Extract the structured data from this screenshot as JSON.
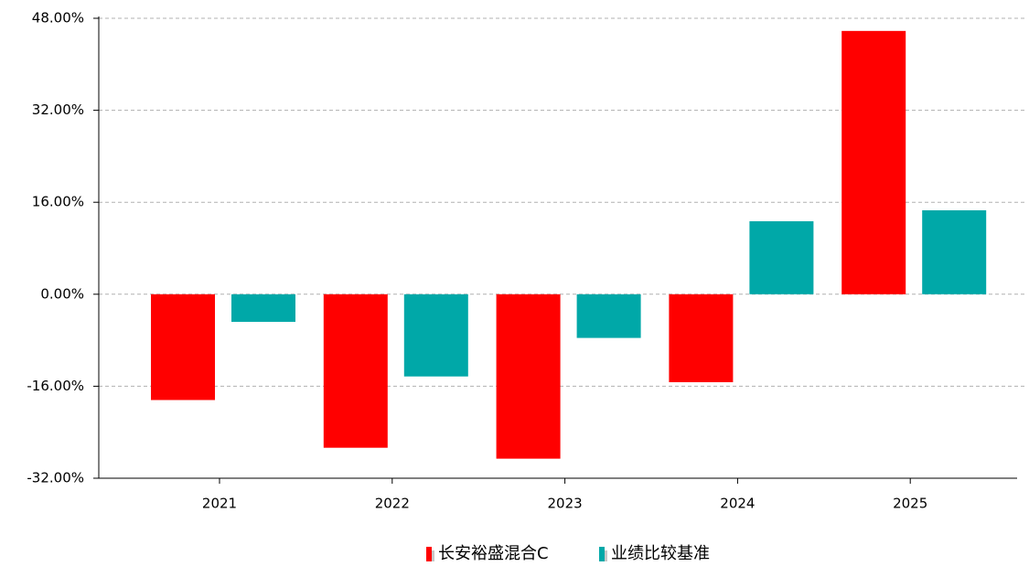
{
  "chart_data": {
    "type": "bar",
    "categories": [
      "2021",
      "2022",
      "2023",
      "2024",
      "2025"
    ],
    "series": [
      {
        "name": "长安裕盛混合C",
        "color": "#ff0000",
        "values": [
          -18.4,
          -26.7,
          -28.6,
          -15.3,
          45.8
        ]
      },
      {
        "name": "业绩比较基准",
        "color": "#00a8a8",
        "values": [
          -4.8,
          -14.3,
          -7.6,
          12.7,
          14.6
        ]
      }
    ],
    "ylim": [
      -32,
      48
    ],
    "yticks": [
      {
        "value": -32,
        "label": "-32.00%"
      },
      {
        "value": -16,
        "label": "-16.00%"
      },
      {
        "value": 0,
        "label": "0.00%"
      },
      {
        "value": 16,
        "label": "16.00%"
      },
      {
        "value": 32,
        "label": "32.00%"
      },
      {
        "value": 48,
        "label": "48.00%"
      }
    ],
    "grid": true,
    "legend": "bottom"
  }
}
